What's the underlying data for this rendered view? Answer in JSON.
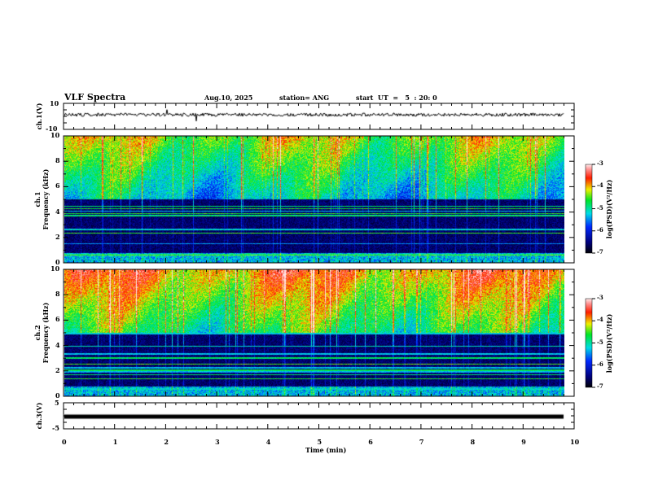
{
  "header": {
    "title": "VLF Spectra",
    "date": "Aug.10, 2025",
    "station": "station= ANG",
    "start": "start  UT  =   5  : 20: 0"
  },
  "colors": {
    "axis": "#000000",
    "background": "#ffffff"
  },
  "chart_data": [
    {
      "type": "line",
      "name": "ch1 waveform",
      "ylabel": "ch.1(V)",
      "ylim": [
        -10,
        10
      ],
      "yticks": [
        "10",
        "-10"
      ],
      "xlim": [
        0,
        10
      ],
      "baseline": 0,
      "data_end_min": 9.8
    },
    {
      "type": "heatmap",
      "name": "ch1 spectrogram",
      "ylabel": "ch.1\nFrequency (kHz)",
      "ylim": [
        0,
        10
      ],
      "yticks": [
        "0",
        "2",
        "4",
        "6",
        "8",
        "10"
      ],
      "xlim": [
        0,
        10
      ],
      "colorbar": {
        "label": "log(PSD)(V²/Hz)",
        "range": [
          -7,
          -3
        ],
        "ticks": [
          "-3",
          "-4",
          "-5",
          "-6",
          "-7"
        ]
      }
    },
    {
      "type": "heatmap",
      "name": "ch2 spectrogram",
      "ylabel": "ch.2\nFrequency (kHz)",
      "ylim": [
        0,
        10
      ],
      "yticks": [
        "0",
        "2",
        "4",
        "6",
        "8",
        "10"
      ],
      "xlim": [
        0,
        10
      ],
      "colorbar": {
        "label": "log(PSD)(V²/Hz)",
        "range": [
          -7,
          -3
        ],
        "ticks": [
          "-3",
          "-4",
          "-5",
          "-6",
          "-7"
        ]
      }
    },
    {
      "type": "line",
      "name": "ch3 waveform",
      "ylabel": "ch.3(V)",
      "ylim": [
        -5,
        5
      ],
      "yticks": [
        "5",
        "-5"
      ],
      "xlim": [
        0,
        10
      ],
      "baseline": 0,
      "data_end_min": 9.8
    }
  ],
  "xaxis": {
    "label": "Time  (min)",
    "ticks": [
      "0",
      "1",
      "2",
      "3",
      "4",
      "5",
      "6",
      "7",
      "8",
      "9",
      "10"
    ]
  },
  "labels": {
    "ch1_v": "ch.1(V)",
    "ch1_spec": "ch.1",
    "freq": "Frequency (kHz)",
    "ch2_spec": "ch.2",
    "ch3_v": "ch.3(V)",
    "cbar": "log(PSD)(V²/Hz)"
  }
}
